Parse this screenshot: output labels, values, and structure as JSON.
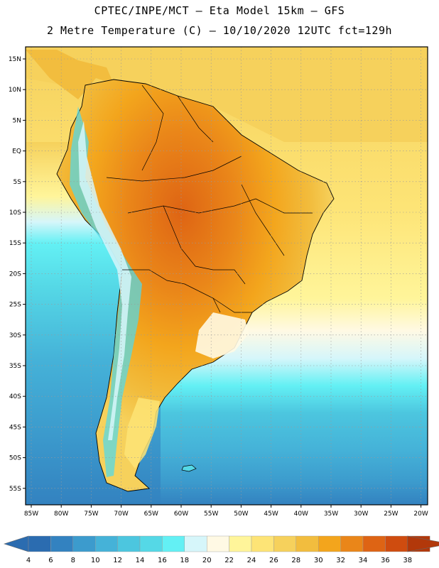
{
  "header": {
    "line1": "CPTEC/INPE/MCT –  Eta Model 15km – GFS",
    "line2": "2 Metre Temperature (C) – 10/10/2020 12UTC fct=129h"
  },
  "map": {
    "lat_labels": [
      "15N",
      "10N",
      "5N",
      "EQ",
      "5S",
      "10S",
      "15S",
      "20S",
      "25S",
      "30S",
      "35S",
      "40S",
      "45S",
      "50S",
      "55S"
    ],
    "lon_labels": [
      "85W",
      "80W",
      "75W",
      "70W",
      "65W",
      "60W",
      "55W",
      "50W",
      "45W",
      "40W",
      "35W",
      "30W",
      "25W",
      "20W"
    ]
  },
  "colorbar": {
    "ticks": [
      "4",
      "6",
      "8",
      "10",
      "12",
      "14",
      "16",
      "18",
      "20",
      "22",
      "24",
      "26",
      "28",
      "30",
      "32",
      "34",
      "36",
      "38"
    ],
    "colors": [
      "#2b6cb0",
      "#3382c0",
      "#3c9bcd",
      "#45b2d8",
      "#4cc6df",
      "#55d8e6",
      "#63f0f4",
      "#d6f6fa",
      "#fff9e4",
      "#fff59a",
      "#fde476",
      "#f6d15c",
      "#f2bd3e",
      "#f3a51c",
      "#ea8619",
      "#de6414",
      "#cf4c0f",
      "#b2380a"
    ],
    "arrow_left_color": "#2b6cb0",
    "arrow_right_color": "#b2380a"
  }
}
